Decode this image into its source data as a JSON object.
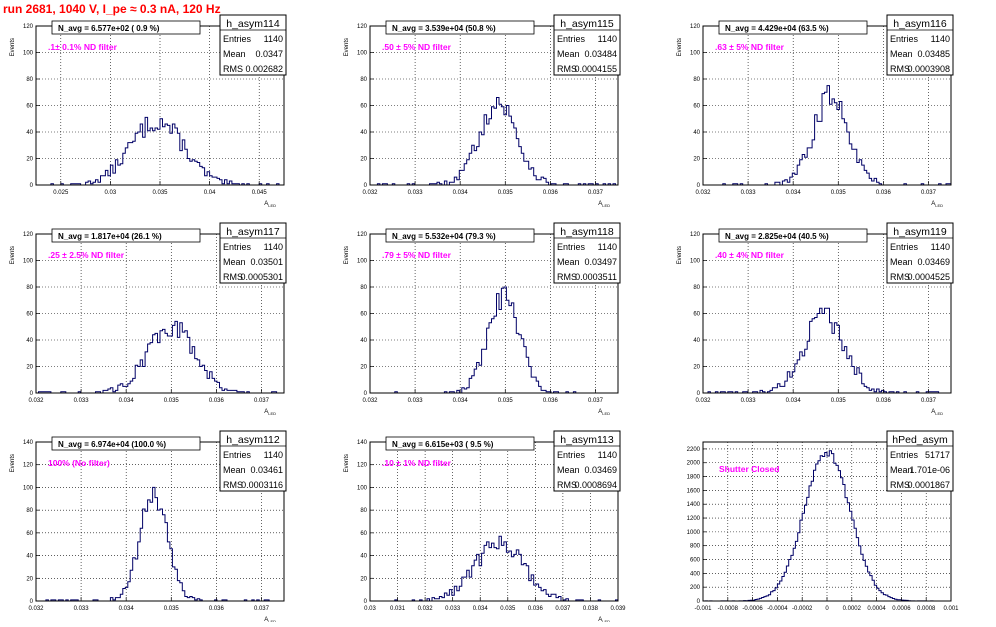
{
  "run_title": "run 2681,  1040 V, I_pe ≈ 0.3 nA, 120 Hz",
  "colors": {
    "hist": "#000066",
    "annotation": "#ff00ff",
    "title": "#ff0000",
    "grid": "#000000"
  },
  "chart_data": [
    {
      "type": "histogram",
      "name": "h_asym114",
      "title": "N_avg = 6.577e+02 ( 0.9 %)",
      "note": ".1± 0.1% ND filter",
      "stats": {
        "entries": "1140",
        "mean": "0.0347",
        "rms": "0.002682"
      },
      "ylabel": "Events",
      "xlabel": "A_LED",
      "xlim": [
        0.0225,
        0.0475
      ],
      "ylim": [
        0,
        120
      ],
      "xticks": [
        "0.025",
        "0.03",
        "0.035",
        "0.04",
        "0.045"
      ],
      "xtick_values": [
        0.025,
        0.03,
        0.035,
        0.04,
        0.045
      ],
      "yticks": [
        "0",
        "20",
        "40",
        "60",
        "80",
        "100",
        "120"
      ],
      "ytick_values": [
        0,
        20,
        40,
        60,
        80,
        100,
        120
      ],
      "mu": 0.0347,
      "sigma": 0.002682,
      "peak": 48,
      "bins": 100
    },
    {
      "type": "histogram",
      "name": "h_asym115",
      "title": "N_avg = 3.539e+04 (50.8 %)",
      "note": ".50 ± 5% ND filter",
      "stats": {
        "entries": "1140",
        "mean": "0.03484",
        "rms": "0.0004155"
      },
      "ylabel": "Events",
      "xlabel": "A_LED",
      "xlim": [
        0.032,
        0.0375
      ],
      "ylim": [
        0,
        120
      ],
      "xticks": [
        "0.032",
        "0.033",
        "0.034",
        "0.035",
        "0.036",
        "0.037"
      ],
      "xtick_values": [
        0.032,
        0.033,
        0.034,
        0.035,
        0.036,
        0.037
      ],
      "yticks": [
        "0",
        "20",
        "40",
        "60",
        "80",
        "100",
        "120"
      ],
      "ytick_values": [
        0,
        20,
        40,
        60,
        80,
        100,
        120
      ],
      "mu": 0.03484,
      "sigma": 0.0004155,
      "peak": 62,
      "bins": 100
    },
    {
      "type": "histogram",
      "name": "h_asym116",
      "title": "N_avg = 4.429e+04 (63.5 %)",
      "note": ".63 ± 5% ND filter",
      "stats": {
        "entries": "1140",
        "mean": "0.03485",
        "rms": "0.0003908"
      },
      "ylabel": "Events",
      "xlabel": "A_LED",
      "xlim": [
        0.032,
        0.0375
      ],
      "ylim": [
        0,
        120
      ],
      "xticks": [
        "0.032",
        "0.033",
        "0.034",
        "0.035",
        "0.036",
        "0.037"
      ],
      "xtick_values": [
        0.032,
        0.033,
        0.034,
        0.035,
        0.036,
        0.037
      ],
      "yticks": [
        "0",
        "20",
        "40",
        "60",
        "80",
        "100",
        "120"
      ],
      "ytick_values": [
        0,
        20,
        40,
        60,
        80,
        100,
        120
      ],
      "mu": 0.03485,
      "sigma": 0.0003908,
      "peak": 68,
      "bins": 100
    },
    {
      "type": "histogram",
      "name": "h_asym117",
      "title": "N_avg = 1.817e+04 (26.1 %)",
      "note": ".25 ± 2.5% ND filter",
      "stats": {
        "entries": "1140",
        "mean": "0.03501",
        "rms": "0.0005301"
      },
      "ylabel": "Events",
      "xlabel": "A_LED",
      "xlim": [
        0.032,
        0.0375
      ],
      "ylim": [
        0,
        120
      ],
      "xticks": [
        "0.032",
        "0.033",
        "0.034",
        "0.035",
        "0.036",
        "0.037"
      ],
      "xtick_values": [
        0.032,
        0.033,
        0.034,
        0.035,
        0.036,
        0.037
      ],
      "yticks": [
        "0",
        "20",
        "40",
        "60",
        "80",
        "100",
        "120"
      ],
      "ytick_values": [
        0,
        20,
        40,
        60,
        80,
        100,
        120
      ],
      "mu": 0.03501,
      "sigma": 0.0005301,
      "peak": 50,
      "bins": 100
    },
    {
      "type": "histogram",
      "name": "h_asym118",
      "title": "N_avg = 5.532e+04 (79.3 %)",
      "note": ".79 ± 5% ND filter",
      "stats": {
        "entries": "1140",
        "mean": "0.03497",
        "rms": "0.0003511"
      },
      "ylabel": "Events",
      "xlabel": "A_LED",
      "xlim": [
        0.032,
        0.0375
      ],
      "ylim": [
        0,
        120
      ],
      "xticks": [
        "0.032",
        "0.033",
        "0.034",
        "0.035",
        "0.036",
        "0.037"
      ],
      "xtick_values": [
        0.032,
        0.033,
        0.034,
        0.035,
        0.036,
        0.037
      ],
      "yticks": [
        "0",
        "20",
        "40",
        "60",
        "80",
        "100",
        "120"
      ],
      "ytick_values": [
        0,
        20,
        40,
        60,
        80,
        100,
        120
      ],
      "mu": 0.03497,
      "sigma": 0.0003511,
      "peak": 72,
      "bins": 100
    },
    {
      "type": "histogram",
      "name": "h_asym119",
      "title": "N_avg = 2.825e+04 (40.5 %)",
      "note": ".40 ± 4% ND filter",
      "stats": {
        "entries": "1140",
        "mean": "0.03469",
        "rms": "0.0004525"
      },
      "ylabel": "Events",
      "xlabel": "A_LED",
      "xlim": [
        0.032,
        0.0375
      ],
      "ylim": [
        0,
        120
      ],
      "xticks": [
        "0.032",
        "0.033",
        "0.034",
        "0.035",
        "0.036",
        "0.037"
      ],
      "xtick_values": [
        0.032,
        0.033,
        0.034,
        0.035,
        0.036,
        0.037
      ],
      "yticks": [
        "0",
        "20",
        "40",
        "60",
        "80",
        "100",
        "120"
      ],
      "ytick_values": [
        0,
        20,
        40,
        60,
        80,
        100,
        120
      ],
      "mu": 0.03469,
      "sigma": 0.0004525,
      "peak": 58,
      "bins": 100
    },
    {
      "type": "histogram",
      "name": "h_asym112",
      "title": "N_avg = 6.974e+04 (100.0 %)",
      "note": "100% (No filter)",
      "stats": {
        "entries": "1140",
        "mean": "0.03461",
        "rms": "0.0003116"
      },
      "ylabel": "Events",
      "xlabel": "A_LED",
      "xlim": [
        0.032,
        0.0375
      ],
      "ylim": [
        0,
        140
      ],
      "xticks": [
        "0.032",
        "0.033",
        "0.034",
        "0.035",
        "0.036",
        "0.037"
      ],
      "xtick_values": [
        0.032,
        0.033,
        0.034,
        0.035,
        0.036,
        0.037
      ],
      "yticks": [
        "0",
        "20",
        "40",
        "60",
        "80",
        "100",
        "120",
        "140"
      ],
      "ytick_values": [
        0,
        20,
        40,
        60,
        80,
        100,
        120,
        140
      ],
      "mu": 0.03461,
      "sigma": 0.0003116,
      "peak": 92,
      "bins": 100
    },
    {
      "type": "histogram",
      "name": "h_asym113",
      "title": "N_avg = 6.615e+03 ( 9.5 %)",
      "note": ".10 ± 1% ND filter",
      "stats": {
        "entries": "1140",
        "mean": "0.03469",
        "rms": "0.0008694"
      },
      "ylabel": "Events",
      "xlabel": "A_LED",
      "xlim": [
        0.03,
        0.039
      ],
      "ylim": [
        0,
        140
      ],
      "xticks": [
        "0.03",
        "0.031",
        "0.032",
        "0.033",
        "0.034",
        "0.035",
        "0.036",
        "0.037",
        "0.038",
        "0.039"
      ],
      "xtick_values": [
        0.03,
        0.031,
        0.032,
        0.033,
        0.034,
        0.035,
        0.036,
        0.037,
        0.038,
        0.039
      ],
      "yticks": [
        "0",
        "20",
        "40",
        "60",
        "80",
        "100",
        "120",
        "140"
      ],
      "ytick_values": [
        0,
        20,
        40,
        60,
        80,
        100,
        120,
        140
      ],
      "mu": 0.03469,
      "sigma": 0.0008694,
      "peak": 52,
      "bins": 100
    },
    {
      "type": "histogram",
      "name": "hPed_asym",
      "title": "",
      "note": "Shutter Closed",
      "stats": {
        "entries": "51717",
        "mean": "1.701e-06",
        "rms": "0.0001867"
      },
      "ylabel": "",
      "xlabel": "",
      "xlim": [
        -0.001,
        0.001
      ],
      "ylim": [
        0,
        2300
      ],
      "xticks": [
        "-0.001",
        "-0.0008",
        "-0.0006",
        "-0.0004",
        "-0.0002",
        "0",
        "0.0002",
        "0.0004",
        "0.0006",
        "0.0008",
        "0.001"
      ],
      "xtick_values": [
        -0.001,
        -0.0008,
        -0.0006,
        -0.0004,
        -0.0002,
        0,
        0.0002,
        0.0004,
        0.0006,
        0.0008,
        0.001
      ],
      "yticks": [
        "0",
        "200",
        "400",
        "600",
        "800",
        "1000",
        "1200",
        "1400",
        "1600",
        "1800",
        "2000",
        "2200"
      ],
      "ytick_values": [
        0,
        200,
        400,
        600,
        800,
        1000,
        1200,
        1400,
        1600,
        1800,
        2000,
        2200
      ],
      "mu": 1.7e-06,
      "sigma": 0.0001867,
      "peak": 2150,
      "bins": 110
    }
  ],
  "stat_labels": {
    "entries": "Entries",
    "mean": "Mean",
    "rms": "RMS"
  }
}
